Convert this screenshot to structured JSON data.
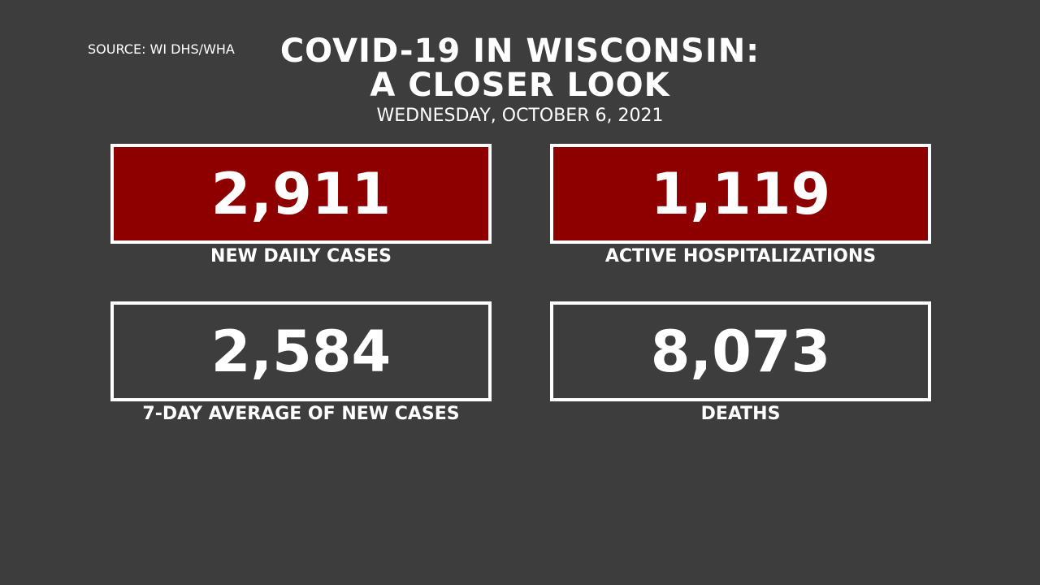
{
  "header": {
    "source": "SOURCE: WI DHS/WHA",
    "title": [
      "COVID-19 IN WISCONSIN:",
      "A CLOSER LOOK"
    ],
    "date": "WEDNESDAY, OCTOBER 6, 2021"
  },
  "stats": [
    {
      "value": "2,911",
      "label": "NEW DAILY CASES",
      "color": "#8e0000"
    },
    {
      "value": "1,119",
      "label": "ACTIVE HOSPITALIZATIONS",
      "color": "#8e0000"
    },
    {
      "value": "2,584",
      "label": "7-DAY AVERAGE OF NEW CASES",
      "color": "#3d3d3d"
    },
    {
      "value": "8,073",
      "label": "DEATHS",
      "color": "#3d3d3d"
    }
  ]
}
